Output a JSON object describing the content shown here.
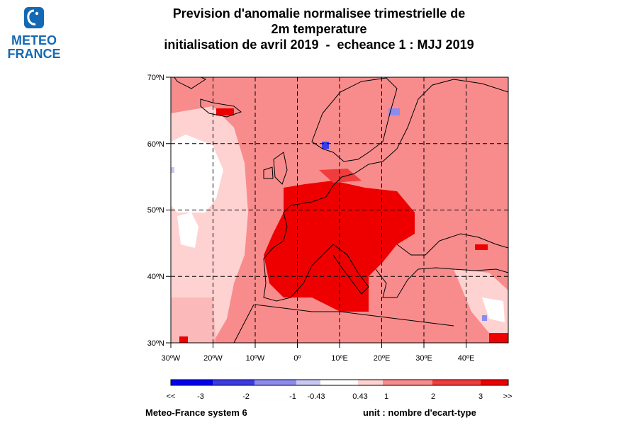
{
  "logo": {
    "line1": "METEO",
    "line2": "FRANCE"
  },
  "title": {
    "line1": "Prevision d'anomalie normalisee trimestrielle de",
    "line2": "2m temperature",
    "line3": "initialisation de avril 2019  -  echeance 1 : MJJ 2019"
  },
  "map": {
    "projection": "lat-lon",
    "lon_range": [
      -30,
      50
    ],
    "lat_range": [
      30,
      70
    ],
    "lat_ticks": [
      "30ºN",
      "40ºN",
      "50ºN",
      "60ºN",
      "70ºN"
    ],
    "lon_ticks": [
      "30ºW",
      "20ºW",
      "10ºW",
      "0º",
      "10ºE",
      "20ºE",
      "30ºE",
      "40ºE"
    ],
    "gridlines": "dashed",
    "dominant_class": "1 to 2",
    "strong_anomaly_region": "France, Iberia, Germany, central Europe: 2 to 3",
    "neutral_region": "central North Atlantic: -0.43 to 0.43",
    "negative_spots": [
      "southern Norway coast",
      "Gulf of Bothnia",
      "western Atlantic edge",
      "eastern Turkey"
    ]
  },
  "colorbar": {
    "colors": [
      "#0000ee",
      "#3c3ce6",
      "#8c8cee",
      "#c8c8f4",
      "#ffffff",
      "#ffd2d2",
      "#f88c8c",
      "#f03c3c",
      "#ee0000"
    ],
    "labels": [
      "<<",
      "-3",
      "-2",
      "-1",
      "-0.43",
      "0.43",
      "1",
      "2",
      "3",
      ">>"
    ]
  },
  "footer": {
    "model": "Meteo-France system 6",
    "unit": "unit : nombre d'ecart-type"
  }
}
